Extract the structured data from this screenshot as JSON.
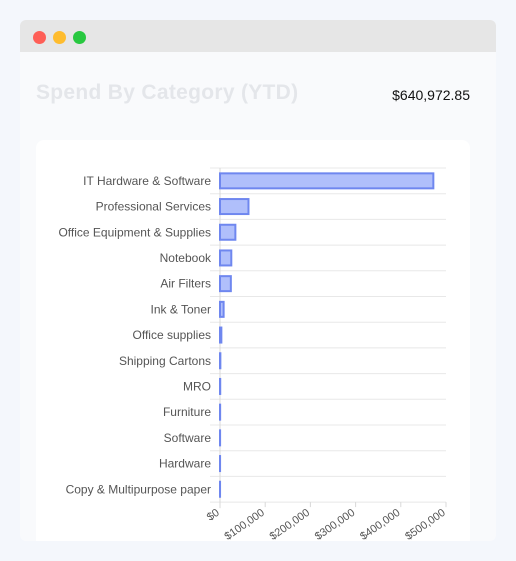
{
  "header": {
    "title": "Spend By Category (YTD)",
    "total": "$640,972.85"
  },
  "colors": {
    "bar_fill": "#b0bffb",
    "bar_stroke": "#6f87ef",
    "title_text": "#e4e6ea"
  },
  "chart_data": {
    "type": "bar",
    "orientation": "horizontal",
    "categories": [
      "IT Hardware & Software",
      "Professional Services",
      "Office Equipment & Supplies",
      "Notebook",
      "Air Filters",
      "Ink & Toner",
      "Office supplies",
      "Shipping Cartons",
      "MRO",
      "Furniture",
      "Software",
      "Hardware",
      "Copy & Multipurpose paper"
    ],
    "values": [
      472000,
      63000,
      34000,
      25000,
      24000,
      8000,
      3000,
      800,
      500,
      300,
      200,
      150,
      100
    ],
    "xlim": [
      0,
      500000
    ],
    "x_ticks": [
      "$0",
      "$100,000",
      "$200,000",
      "$300,000",
      "$400,000",
      "$500,000"
    ],
    "grid": "horizontal",
    "legend": "none"
  }
}
